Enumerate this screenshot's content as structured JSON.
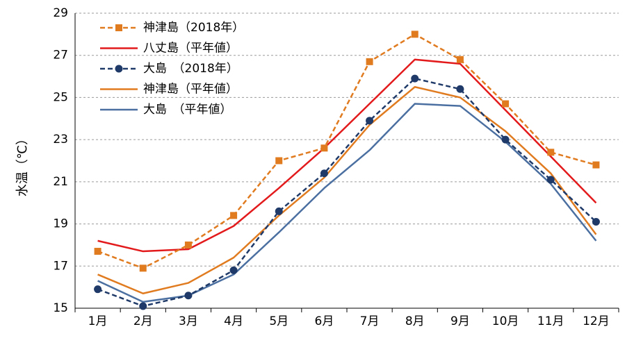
{
  "chart_data": {
    "type": "line",
    "ylabel": "水温（℃）",
    "ylim": [
      15,
      29
    ],
    "yticks": [
      "15",
      "17",
      "19",
      "21",
      "23",
      "25",
      "27",
      "29"
    ],
    "categories": [
      "1月",
      "2月",
      "3月",
      "4月",
      "5月",
      "6月",
      "7月",
      "8月",
      "9月",
      "10月",
      "11月",
      "12月"
    ],
    "grid": "horizontal dashed",
    "legend_position": "top-left",
    "series": [
      {
        "name": "神津島（2018年）",
        "color": "#E07B20",
        "dash": "dashed",
        "marker": "square",
        "values": [
          17.7,
          16.9,
          18.0,
          19.4,
          22.0,
          22.6,
          26.7,
          28.0,
          26.8,
          24.7,
          22.4,
          21.8
        ]
      },
      {
        "name": "八丈島（平年値）",
        "color": "#E31A1C",
        "dash": "solid",
        "marker": "none",
        "values": [
          18.2,
          17.7,
          17.8,
          18.9,
          20.7,
          22.6,
          24.7,
          26.8,
          26.6,
          24.4,
          22.2,
          20.0
        ]
      },
      {
        "name": "大島　（2018年）",
        "color": "#1F3A68",
        "dash": "dashed",
        "marker": "circle",
        "values": [
          15.9,
          15.1,
          15.6,
          16.8,
          19.6,
          21.4,
          23.9,
          25.9,
          25.4,
          23.0,
          21.1,
          19.1
        ]
      },
      {
        "name": "神津島（平年値）",
        "color": "#E07B20",
        "dash": "solid",
        "marker": "none",
        "values": [
          16.6,
          15.7,
          16.2,
          17.4,
          19.4,
          21.2,
          23.7,
          25.5,
          25.0,
          23.4,
          21.4,
          18.5
        ]
      },
      {
        "name": "大島　（平年値）",
        "color": "#4A6FA0",
        "dash": "solid",
        "marker": "none",
        "values": [
          16.3,
          15.3,
          15.6,
          16.6,
          18.6,
          20.7,
          22.5,
          24.7,
          24.6,
          22.9,
          20.9,
          18.2
        ]
      }
    ]
  }
}
